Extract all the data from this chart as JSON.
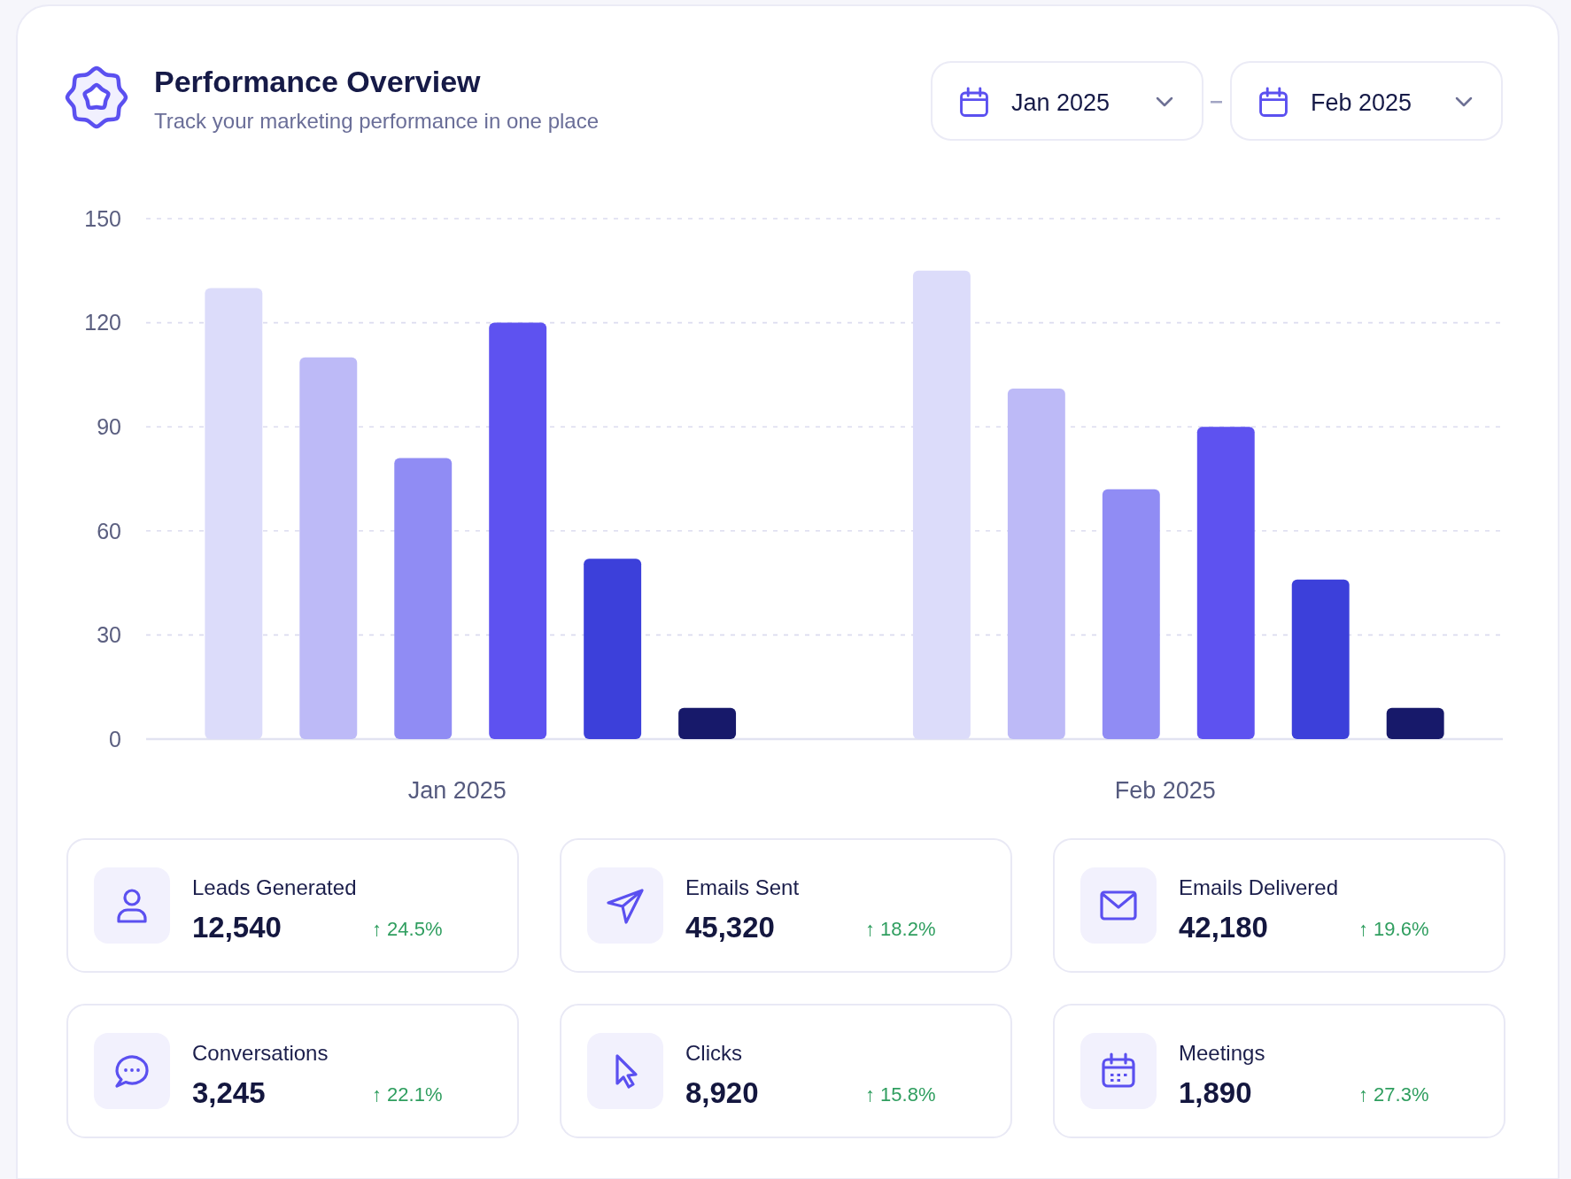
{
  "chart_data": [
    {
      "type": "bar",
      "title": "Performance Overview",
      "subtitle": "Track your marketing performance in one place",
      "categories": [
        "Jan 2025",
        "Feb 2025"
      ],
      "series": [
        {
          "color": "#dcdcfa",
          "values": [
            130,
            135
          ]
        },
        {
          "color": "#bdbaf7",
          "values": [
            110,
            101
          ]
        },
        {
          "color": "#908cf4",
          "values": [
            81,
            72
          ]
        },
        {
          "color": "#5e52f0",
          "values": [
            120,
            90
          ]
        },
        {
          "color": "#3c40da",
          "values": [
            52,
            46
          ]
        },
        {
          "color": "#17196a",
          "values": [
            9,
            9
          ]
        }
      ],
      "ylim": [
        0,
        150
      ],
      "yticks": [
        0,
        30,
        60,
        90,
        120,
        150
      ],
      "grid": "y",
      "annotations": [
        "Jan 2025",
        "Feb 2025"
      ]
    },
    {
      "type": "other",
      "annotations": [
        "Leads Generated",
        "12,540",
        "↑ 24.5%",
        "Emails Sent",
        "45,320",
        "↑ 18.2%",
        "Emails Delivered",
        "42,180",
        "↑ 19.6%",
        "Conversations",
        "3,245",
        "↑ 22.1%",
        "Clicks",
        "8,920",
        "↑ 15.8%",
        "Meetings",
        "1,890",
        "↑ 27.3%"
      ]
    }
  ]
}
